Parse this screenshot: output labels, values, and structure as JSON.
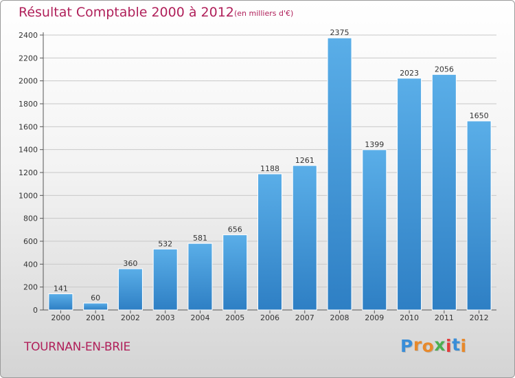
{
  "header": {
    "title": "Résultat Comptable 2000 à 2012",
    "subtitle": "(en milliers d'€)"
  },
  "footer": {
    "commune": "TOURNAN-EN-BRIE",
    "brand": "Proxiti",
    "brand_letters": [
      {
        "char": "P",
        "color": "#3a8ed8"
      },
      {
        "char": "r",
        "color": "#e8892b"
      },
      {
        "char": "o",
        "color": "#e8892b"
      },
      {
        "char": "x",
        "color": "#4caf50"
      },
      {
        "char": "i",
        "color": "#e23b3b"
      },
      {
        "char": "t",
        "color": "#3a8ed8"
      },
      {
        "char": "i",
        "color": "#e8892b"
      }
    ]
  },
  "colors": {
    "bar_top": "#5aaee8",
    "bar_bottom": "#2e7fc4",
    "grid": "#c8c8c8",
    "text": "#333333",
    "accent": "#b0205a"
  },
  "chart_data": {
    "type": "bar",
    "categories": [
      "2000",
      "2001",
      "2002",
      "2003",
      "2004",
      "2005",
      "2006",
      "2007",
      "2008",
      "2009",
      "2010",
      "2011",
      "2012"
    ],
    "values": [
      141,
      60,
      360,
      532,
      581,
      656,
      1188,
      1261,
      2375,
      1399,
      2023,
      2056,
      1650
    ],
    "ylim": [
      0,
      2400
    ],
    "yticks": [
      0,
      200,
      400,
      600,
      800,
      1000,
      1200,
      1400,
      1600,
      1800,
      2000,
      2200,
      2400
    ],
    "grid": true
  }
}
